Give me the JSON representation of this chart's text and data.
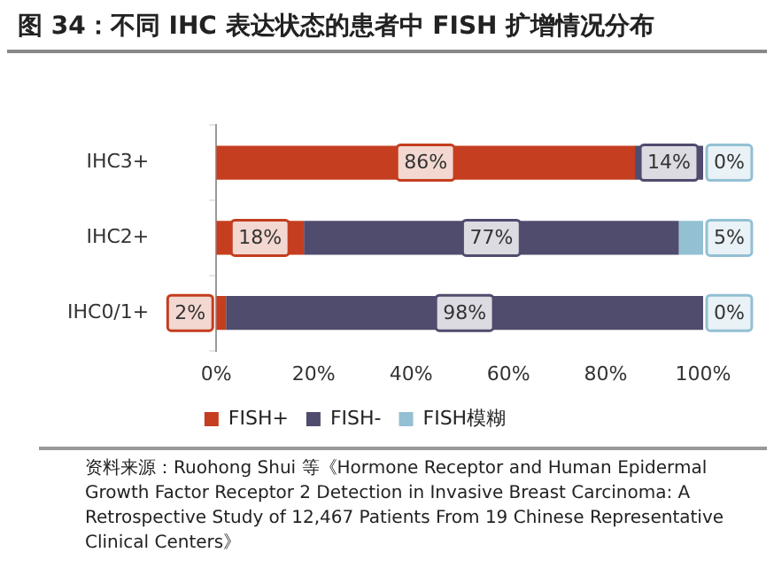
{
  "chart_data": {
    "type": "bar",
    "orientation": "horizontal",
    "stacked": true,
    "title": "图 34：不同 IHC 表达状态的患者中 FISH 扩增情况分布",
    "categories": [
      "IHC3+",
      "IHC2+",
      "IHC0/1+"
    ],
    "series": [
      {
        "name": "FISH+",
        "color": "#c43e1f",
        "values": [
          86,
          18,
          2
        ],
        "value_labels": [
          "86%",
          "18%",
          "2%"
        ]
      },
      {
        "name": "FISH-",
        "color": "#4f4c6e",
        "values": [
          14,
          77,
          98
        ],
        "value_labels": [
          "14%",
          "77%",
          "98%"
        ]
      },
      {
        "name": "FISH模糊",
        "color": "#93c0d3",
        "values": [
          0,
          5,
          0
        ],
        "value_labels": [
          "0%",
          "5%",
          "0%"
        ]
      }
    ],
    "xlim": [
      0,
      100
    ],
    "xticks": [
      {
        "value": 0,
        "label": "0%"
      },
      {
        "value": 20,
        "label": "20%"
      },
      {
        "value": 40,
        "label": "40%"
      },
      {
        "value": 60,
        "label": "60%"
      },
      {
        "value": 80,
        "label": "80%"
      },
      {
        "value": 100,
        "label": "100%"
      }
    ],
    "grid": false,
    "legend": "bottom",
    "annotations": [
      "资料来源：Ruohong Shui 等《Hormone Receptor and Human Epidermal Growth Factor Receptor 2 Detection in Invasive Breast Carcinoma: A Retrospective Study of 12,467 Patients From 19 Chinese Representative Clinical Centers》"
    ]
  }
}
